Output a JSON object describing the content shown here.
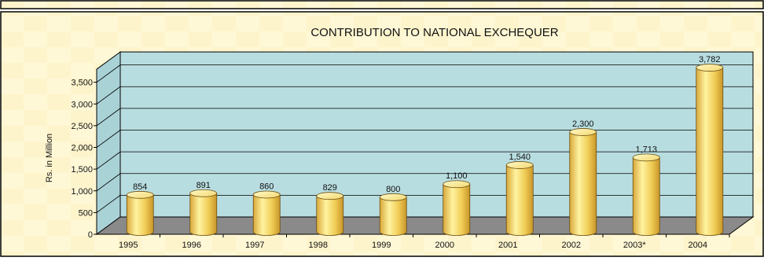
{
  "chart_data": {
    "type": "bar",
    "title": "CONTRIBUTION TO NATIONAL EXCHEQUER",
    "xlabel": "",
    "ylabel": "Rs. in Million",
    "ylim": [
      0,
      3800
    ],
    "yticks": [
      0,
      500,
      1000,
      1500,
      2000,
      2500,
      3000,
      3500
    ],
    "ytick_labels": [
      "0",
      "500",
      "1,000",
      "1,500",
      "2,000",
      "2,500",
      "3,000",
      "3,500"
    ],
    "categories": [
      "1995",
      "1996",
      "1997",
      "1998",
      "1999",
      "2000",
      "2001",
      "2002",
      "2003*",
      "2004"
    ],
    "values": [
      854,
      891,
      860,
      829,
      800,
      1100,
      1540,
      2300,
      1713,
      3782
    ],
    "data_labels": [
      "854",
      "891",
      "860",
      "829",
      "800",
      "1,100",
      "1,540",
      "2,300",
      "1,713",
      "3,782"
    ],
    "grid": true,
    "legend": "none",
    "colors": {
      "page_background": "#ffffff",
      "outer_panel": "#fff8d6",
      "plot_wall": "#b8dde0",
      "floor": "#8a8a8a",
      "bar_light": "#fff6b0",
      "bar_mid": "#f2d25a",
      "bar_dark": "#c8962a",
      "frame": "#000000"
    }
  }
}
